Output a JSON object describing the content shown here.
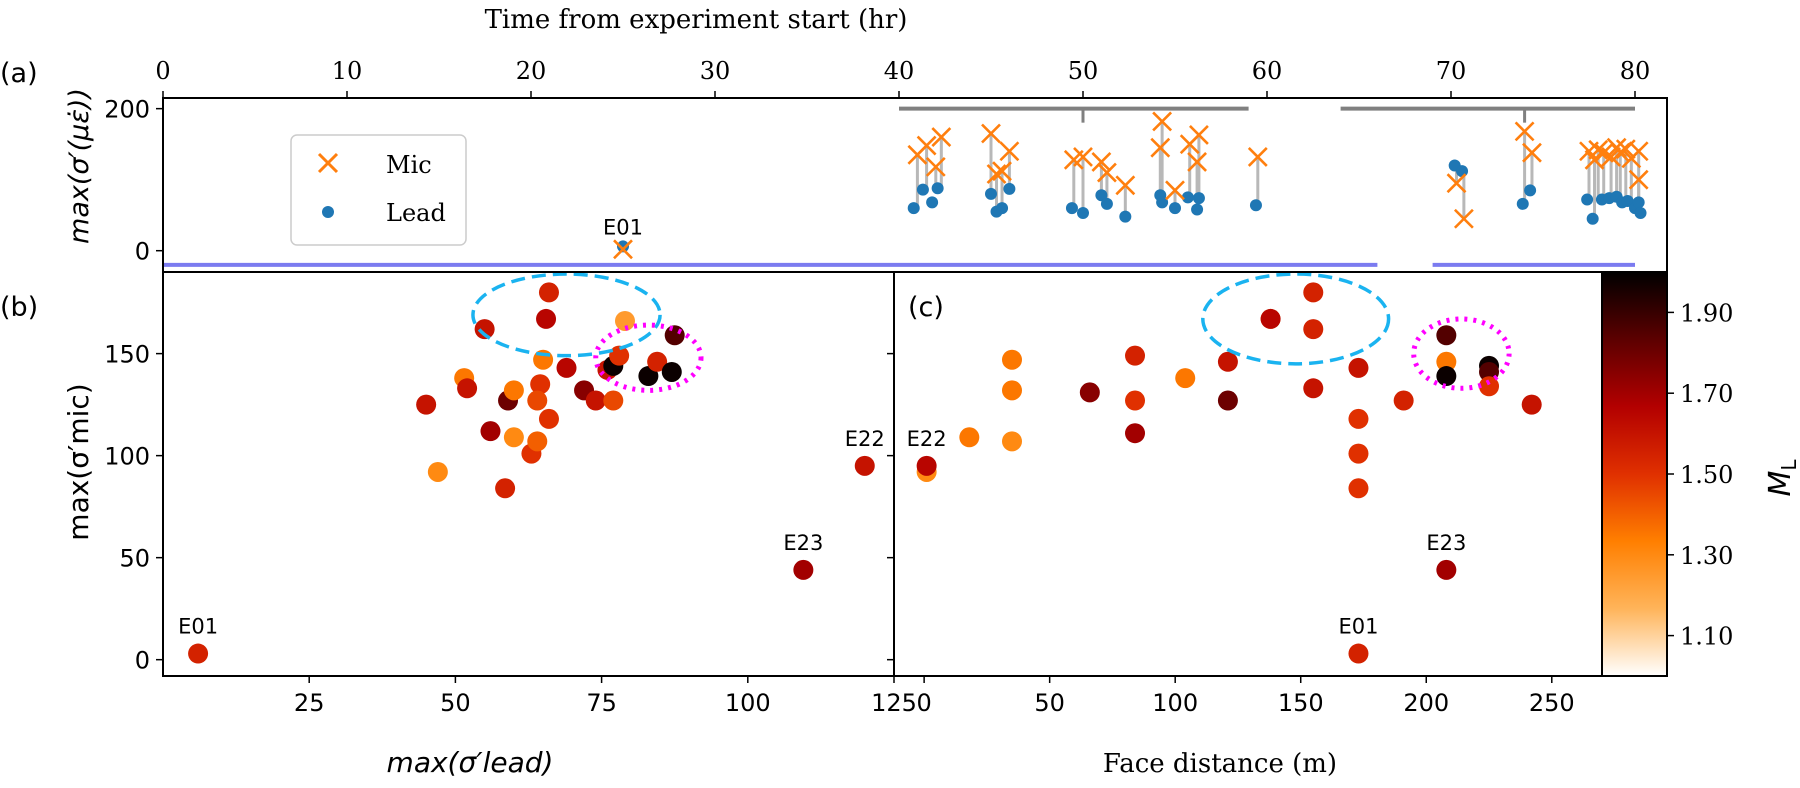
{
  "top_axis": {
    "label": "Time from experiment start (hr)",
    "ticks": [
      0,
      10,
      20,
      30,
      40,
      50,
      60,
      70,
      80
    ],
    "tick_labels": [
      "0",
      "10",
      "20",
      "30",
      "40",
      "50",
      "60",
      "70",
      "80"
    ]
  },
  "colorbar": {
    "label": "M_L",
    "ticks": [
      1.1,
      1.3,
      1.5,
      1.7,
      1.9
    ],
    "tick_labels": [
      "1.10",
      "1.30",
      "1.50",
      "1.70",
      "1.90"
    ],
    "range": [
      1.0,
      2.0
    ],
    "stops": [
      "#ffffff",
      "#ffb45a",
      "#ff7f00",
      "#e03000",
      "#b30000",
      "#5c0000",
      "#000000"
    ]
  },
  "colors": {
    "mic": "#ff7f0e",
    "lead": "#1f77b4",
    "drop_line": "#b8b8b8",
    "blast_span": "#808080",
    "time_span": "#7b7bf0",
    "cluster_dashed": "#1ab3f0",
    "cluster_dotted": "#ff00ff"
  },
  "chart_data": [
    {
      "panel": "a",
      "type": "scatter",
      "panel_label": "(a)",
      "xlabel": "Time from experiment start (hr)",
      "ylabel": "max(σ′(με̇))",
      "xlim": [
        0,
        82
      ],
      "ylim": [
        -30,
        215
      ],
      "yticks": [
        0,
        200
      ],
      "ytick_labels": [
        "0",
        "200"
      ],
      "legend": {
        "placement": "upper-left",
        "entries": [
          "Mic",
          "Lead"
        ]
      },
      "series": [
        {
          "name": "Mic",
          "marker": "x",
          "points": [
            [
              25,
              2
            ],
            [
              41,
              135
            ],
            [
              41.5,
              148
            ],
            [
              42,
              118
            ],
            [
              42.3,
              160
            ],
            [
              45,
              165
            ],
            [
              45.3,
              108
            ],
            [
              45.6,
              112
            ],
            [
              46,
              140
            ],
            [
              49.5,
              128
            ],
            [
              50,
              132
            ],
            [
              51,
              125
            ],
            [
              51.3,
              110
            ],
            [
              52.3,
              92
            ],
            [
              54.2,
              145
            ],
            [
              54.3,
              182
            ],
            [
              55,
              85
            ],
            [
              55.8,
              150
            ],
            [
              56.2,
              125
            ],
            [
              56.3,
              163
            ],
            [
              59.5,
              132
            ],
            [
              70.3,
              95
            ],
            [
              70.7,
              45
            ],
            [
              74,
              168
            ],
            [
              74.4,
              138
            ],
            [
              77.5,
              140
            ],
            [
              77.8,
              128
            ],
            [
              78,
              142
            ],
            [
              78.3,
              138
            ],
            [
              78.7,
              132
            ],
            [
              79,
              145
            ],
            [
              79.2,
              138
            ],
            [
              79.5,
              143
            ],
            [
              79.8,
              130
            ],
            [
              80.2,
              140
            ],
            [
              80.2,
              100
            ]
          ]
        },
        {
          "name": "Lead",
          "marker": "o",
          "points": [
            [
              25,
              6
            ],
            [
              40.8,
              60
            ],
            [
              41.3,
              86
            ],
            [
              41.8,
              68
            ],
            [
              42.1,
              88
            ],
            [
              45,
              80
            ],
            [
              45.3,
              55
            ],
            [
              45.6,
              60
            ],
            [
              46,
              87
            ],
            [
              49.4,
              60
            ],
            [
              50,
              53
            ],
            [
              51,
              78
            ],
            [
              51.3,
              66
            ],
            [
              52.3,
              48
            ],
            [
              54.2,
              78
            ],
            [
              54.3,
              68
            ],
            [
              55,
              60
            ],
            [
              55.7,
              75
            ],
            [
              56.2,
              58
            ],
            [
              56.3,
              74
            ],
            [
              59.4,
              64
            ],
            [
              70.2,
              120
            ],
            [
              70.6,
              112
            ],
            [
              73.9,
              66
            ],
            [
              74.3,
              85
            ],
            [
              77.4,
              72
            ],
            [
              77.7,
              45
            ],
            [
              78.2,
              72
            ],
            [
              78.6,
              74
            ],
            [
              79,
              76
            ],
            [
              79.3,
              68
            ],
            [
              79.6,
              70
            ],
            [
              80,
              60
            ],
            [
              80.2,
              68
            ],
            [
              80.3,
              53
            ]
          ]
        }
      ],
      "annotations": [
        {
          "text": "E01",
          "x": 25,
          "y": 6
        }
      ],
      "overlay_lines": [
        {
          "kind": "blast_span",
          "x": [
            40,
            59
          ],
          "y": 200,
          "tick_x": 50
        },
        {
          "kind": "blast_span",
          "x": [
            64,
            80
          ],
          "y": 200,
          "tick_x": 74
        },
        {
          "kind": "time_span",
          "x": [
            0,
            66
          ],
          "y": -20
        },
        {
          "kind": "time_span",
          "x": [
            69,
            80
          ],
          "y": -20
        }
      ]
    },
    {
      "panel": "b",
      "type": "scatter",
      "panel_label": "(b)",
      "xlabel": "max(σ′lead)",
      "ylabel": "max(σ′mic)",
      "xlim": [
        0,
        125
      ],
      "ylim": [
        -8,
        190
      ],
      "xticks": [
        25,
        50,
        75,
        100,
        125
      ],
      "xtick_labels": [
        "25",
        "50",
        "75",
        "100",
        "125"
      ],
      "yticks": [
        0,
        50,
        100,
        150
      ],
      "ytick_labels": [
        "0",
        "50",
        "100",
        "150"
      ],
      "color_by": "M_L",
      "points": [
        {
          "x": 6,
          "y": 3,
          "m": 1.55
        },
        {
          "x": 45,
          "y": 125,
          "m": 1.6
        },
        {
          "x": 47,
          "y": 92,
          "m": 1.3
        },
        {
          "x": 51.5,
          "y": 138,
          "m": 1.35
        },
        {
          "x": 52,
          "y": 133,
          "m": 1.6
        },
        {
          "x": 55,
          "y": 162,
          "m": 1.6
        },
        {
          "x": 56,
          "y": 112,
          "m": 1.7
        },
        {
          "x": 58.5,
          "y": 84,
          "m": 1.55
        },
        {
          "x": 59,
          "y": 127,
          "m": 1.8
        },
        {
          "x": 60,
          "y": 132,
          "m": 1.35
        },
        {
          "x": 60,
          "y": 109,
          "m": 1.3
        },
        {
          "x": 63,
          "y": 101,
          "m": 1.5
        },
        {
          "x": 64,
          "y": 107,
          "m": 1.4
        },
        {
          "x": 64.5,
          "y": 135,
          "m": 1.5
        },
        {
          "x": 64,
          "y": 127,
          "m": 1.45
        },
        {
          "x": 65,
          "y": 147,
          "m": 1.35
        },
        {
          "x": 65.5,
          "y": 167,
          "m": 1.65
        },
        {
          "x": 66,
          "y": 180,
          "m": 1.55
        },
        {
          "x": 66,
          "y": 118,
          "m": 1.5
        },
        {
          "x": 69,
          "y": 143,
          "m": 1.65
        },
        {
          "x": 72,
          "y": 132,
          "m": 1.75
        },
        {
          "x": 74,
          "y": 127,
          "m": 1.6
        },
        {
          "x": 76,
          "y": 142,
          "m": 1.6
        },
        {
          "x": 77,
          "y": 127,
          "m": 1.45
        },
        {
          "x": 77,
          "y": 144,
          "m": 1.98
        },
        {
          "x": 78,
          "y": 149,
          "m": 1.5
        },
        {
          "x": 79,
          "y": 166,
          "m": 1.25
        },
        {
          "x": 83,
          "y": 139,
          "m": 1.98
        },
        {
          "x": 84.5,
          "y": 146,
          "m": 1.55
        },
        {
          "x": 87,
          "y": 141,
          "m": 1.98
        },
        {
          "x": 87.5,
          "y": 159,
          "m": 1.85
        },
        {
          "x": 109.5,
          "y": 44,
          "m": 1.7
        },
        {
          "x": 120,
          "y": 95,
          "m": 1.6
        }
      ],
      "annotations": [
        {
          "text": "E01",
          "x": 6,
          "y": 3
        },
        {
          "text": "E22",
          "x": 120,
          "y": 95
        },
        {
          "text": "E23",
          "x": 109.5,
          "y": 44
        }
      ],
      "highlight_regions": [
        {
          "style": "dashed",
          "cx": 69,
          "cy": 169,
          "rx": 16,
          "ry": 20
        },
        {
          "style": "dotted",
          "cx": 83,
          "cy": 148,
          "rx": 9,
          "ry": 16
        }
      ]
    },
    {
      "panel": "c",
      "type": "scatter",
      "panel_label": "(c)",
      "xlabel": "Face distance (m)",
      "xlim": [
        -12,
        270
      ],
      "ylim": [
        -8,
        190
      ],
      "xticks": [
        0,
        50,
        100,
        150,
        200,
        250
      ],
      "xtick_labels": [
        "0",
        "50",
        "100",
        "150",
        "200",
        "250"
      ],
      "color_by": "M_L",
      "points": [
        {
          "x": 1,
          "y": 92,
          "m": 1.3
        },
        {
          "x": 1,
          "y": 95,
          "m": 1.65
        },
        {
          "x": 18,
          "y": 109,
          "m": 1.35
        },
        {
          "x": 35,
          "y": 147,
          "m": 1.35
        },
        {
          "x": 35,
          "y": 132,
          "m": 1.35
        },
        {
          "x": 35,
          "y": 107,
          "m": 1.3
        },
        {
          "x": 66,
          "y": 131,
          "m": 1.75
        },
        {
          "x": 84,
          "y": 149,
          "m": 1.55
        },
        {
          "x": 84,
          "y": 127,
          "m": 1.5
        },
        {
          "x": 84,
          "y": 111,
          "m": 1.7
        },
        {
          "x": 104,
          "y": 138,
          "m": 1.35
        },
        {
          "x": 121,
          "y": 146,
          "m": 1.6
        },
        {
          "x": 121,
          "y": 127,
          "m": 1.8
        },
        {
          "x": 138,
          "y": 167,
          "m": 1.3
        },
        {
          "x": 138,
          "y": 167,
          "m": 1.65
        },
        {
          "x": 155,
          "y": 180,
          "m": 1.55
        },
        {
          "x": 155,
          "y": 162,
          "m": 1.55
        },
        {
          "x": 155,
          "y": 133,
          "m": 1.6
        },
        {
          "x": 173,
          "y": 143,
          "m": 1.6
        },
        {
          "x": 173,
          "y": 118,
          "m": 1.5
        },
        {
          "x": 173,
          "y": 101,
          "m": 1.5
        },
        {
          "x": 173,
          "y": 84,
          "m": 1.5
        },
        {
          "x": 173,
          "y": 3,
          "m": 1.55
        },
        {
          "x": 191,
          "y": 127,
          "m": 1.55
        },
        {
          "x": 208,
          "y": 159,
          "m": 1.85
        },
        {
          "x": 208,
          "y": 146,
          "m": 1.35
        },
        {
          "x": 208,
          "y": 139,
          "m": 1.98
        },
        {
          "x": 208,
          "y": 44,
          "m": 1.7
        },
        {
          "x": 225,
          "y": 144,
          "m": 1.98
        },
        {
          "x": 225,
          "y": 141,
          "m": 1.85
        },
        {
          "x": 225,
          "y": 134,
          "m": 1.5
        },
        {
          "x": 242,
          "y": 125,
          "m": 1.6
        }
      ],
      "annotations": [
        {
          "text": "E22",
          "x": 1,
          "y": 95
        },
        {
          "text": "E23",
          "x": 208,
          "y": 44
        },
        {
          "text": "E01",
          "x": 173,
          "y": 3
        }
      ],
      "highlight_regions": [
        {
          "style": "dashed",
          "cx": 148,
          "cy": 167,
          "rx": 37,
          "ry": 22
        },
        {
          "style": "dotted",
          "cx": 214,
          "cy": 150,
          "rx": 19,
          "ry": 17
        }
      ]
    }
  ]
}
